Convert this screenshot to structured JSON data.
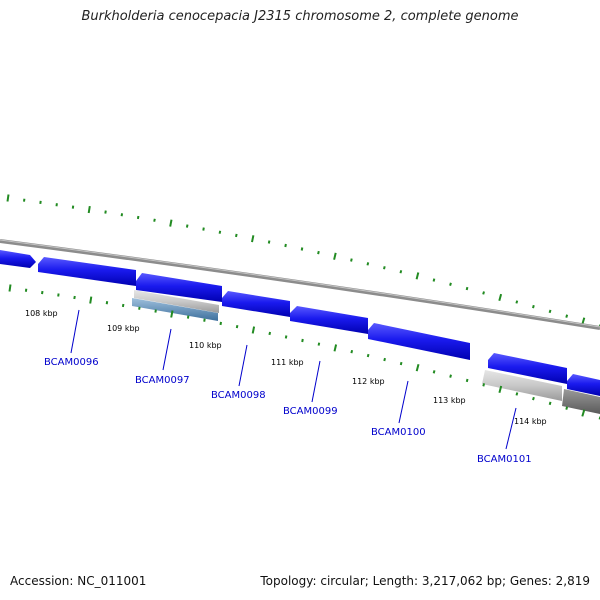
{
  "title": "Burkholderia cenocepacia J2315 chromosome 2, complete genome",
  "footer": {
    "accession": "Accession: NC_011001",
    "summary": "Topology: circular; Length: 3,217,062 bp; Genes: 2,819"
  },
  "kbp_labels": [
    "108 kbp",
    "109 kbp",
    "110 kbp",
    "111 kbp",
    "112 kbp",
    "113 kbp",
    "114 kbp"
  ],
  "gene_labels": [
    "BCAM0096",
    "BCAM0097",
    "BCAM0098",
    "BCAM0099",
    "BCAM0100",
    "BCAM0101"
  ],
  "colors": {
    "backbone": "#8c8c8c",
    "gene": "#1a1aee",
    "gene_light": "#5a5aff",
    "tick": "#228b22",
    "label": "#0000cc"
  }
}
